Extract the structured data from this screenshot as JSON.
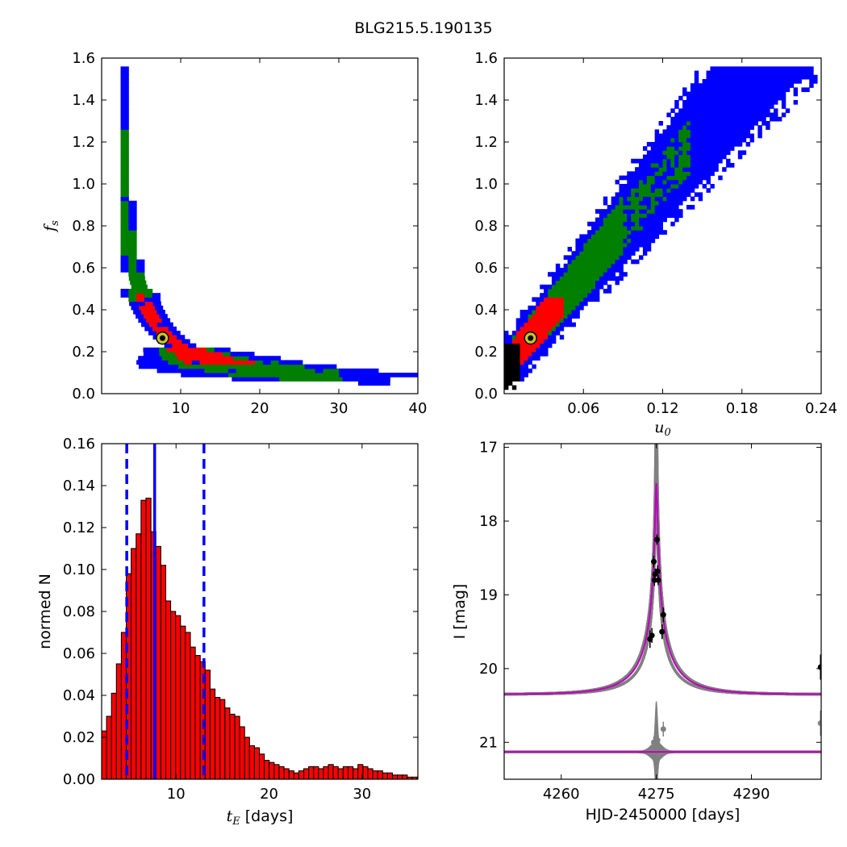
{
  "title": "BLG215.5.190135",
  "colors": {
    "blue": "#0000ff",
    "green": "#007f00",
    "red": "#ff0000",
    "black": "#000000",
    "magenta": "#bf00bf",
    "gray": "#808080",
    "marker_fill": "#c8c82a"
  },
  "chart_data": [
    {
      "type": "heatmap",
      "panel": "fs-vs-tE",
      "xlabel": "",
      "ylabel": "f_s",
      "xlim": [
        0,
        40
      ],
      "ylim": [
        0,
        1.6
      ],
      "xticks": [
        "10",
        "20",
        "30",
        "40"
      ],
      "yticks": [
        "0.0",
        "0.2",
        "0.4",
        "0.6",
        "0.8",
        "1.0",
        "1.2",
        "1.4",
        "1.6"
      ],
      "levels": [
        "blue",
        "green",
        "red",
        "black"
      ],
      "best_fit": {
        "tE": 7.7,
        "fs": 0.265
      },
      "ridge": {
        "fs_times_tE": 2.05
      }
    },
    {
      "type": "heatmap",
      "panel": "fs-vs-u0",
      "xlabel": "u_0",
      "ylabel": "",
      "xlim": [
        0,
        0.24
      ],
      "ylim": [
        0,
        1.6
      ],
      "xticks": [
        "0.06",
        "0.12",
        "0.18",
        "0.24"
      ],
      "yticks": [
        "0.0",
        "0.2",
        "0.4",
        "0.6",
        "0.8",
        "1.0",
        "1.2",
        "1.4",
        "1.6"
      ],
      "levels": [
        "blue",
        "green",
        "red",
        "black"
      ],
      "best_fit": {
        "u0": 0.02,
        "fs": 0.265
      },
      "ridge": {
        "slope": 7.5,
        "intercept": 0.13
      }
    },
    {
      "type": "bar",
      "panel": "tE-histogram",
      "xlabel": "t_E [days]",
      "ylabel": "normed N",
      "xlim": [
        2,
        36
      ],
      "ylim": [
        0,
        0.16
      ],
      "xticks": [
        "10",
        "20",
        "30"
      ],
      "yticks": [
        "0.00",
        "0.02",
        "0.04",
        "0.06",
        "0.08",
        "0.10",
        "0.12",
        "0.14",
        "0.16"
      ],
      "bin_start": 2.0,
      "bin_width": 0.53,
      "values": [
        0.023,
        0.03,
        0.041,
        0.055,
        0.07,
        0.098,
        0.11,
        0.117,
        0.133,
        0.134,
        0.118,
        0.111,
        0.102,
        0.085,
        0.08,
        0.078,
        0.073,
        0.07,
        0.063,
        0.059,
        0.056,
        0.052,
        0.043,
        0.039,
        0.038,
        0.034,
        0.031,
        0.03,
        0.025,
        0.02,
        0.016,
        0.015,
        0.012,
        0.009,
        0.008,
        0.007,
        0.006,
        0.005,
        0.004,
        0.003,
        0.004,
        0.005,
        0.006,
        0.006,
        0.005,
        0.006,
        0.007,
        0.006,
        0.005,
        0.006,
        0.006,
        0.005,
        0.007,
        0.006,
        0.005,
        0.004,
        0.004,
        0.003,
        0.003,
        0.002,
        0.002,
        0.002,
        0.001,
        0.001,
        0.001
      ],
      "median": 7.7,
      "lower": 4.7,
      "upper": 13.0
    },
    {
      "type": "line",
      "panel": "light-curve",
      "xlabel": "HJD-2450000 [days]",
      "ylabel": "I [mag]",
      "xlim": [
        4251,
        4301
      ],
      "ylim": [
        21.5,
        16.95
      ],
      "xticks": [
        "4260",
        "4275",
        "4290"
      ],
      "yticks": [
        "17",
        "18",
        "19",
        "20",
        "21"
      ],
      "model": {
        "t0": 4275.0,
        "u0": 0.02,
        "tE": 7.7,
        "baseline": 20.35,
        "fs": 0.265
      },
      "residual_baseline": 21.13,
      "points": [
        {
          "t": 4274.0,
          "mag": 19.6,
          "err": 0.12
        },
        {
          "t": 4274.3,
          "mag": 19.55,
          "err": 0.1
        },
        {
          "t": 4274.6,
          "mag": 18.55,
          "err": 0.08
        },
        {
          "t": 4274.7,
          "mag": 18.8,
          "err": 0.08
        },
        {
          "t": 4274.8,
          "mag": 18.72,
          "err": 0.08
        },
        {
          "t": 4275.1,
          "mag": 18.25,
          "err": 0.07
        },
        {
          "t": 4275.2,
          "mag": 18.68,
          "err": 0.08
        },
        {
          "t": 4275.3,
          "mag": 18.8,
          "err": 0.07
        },
        {
          "t": 4275.9,
          "mag": 19.5,
          "err": 0.1
        },
        {
          "t": 4276.1,
          "mag": 19.27,
          "err": 0.1
        },
        {
          "t": 4300.9,
          "mag": 19.98,
          "err": 0.17
        }
      ],
      "residual_points": [
        {
          "t": 4274.6,
          "mag": 21.0,
          "err": 0.08
        },
        {
          "t": 4275.2,
          "mag": 20.97,
          "err": 0.08
        },
        {
          "t": 4276.1,
          "mag": 20.82,
          "err": 0.1
        },
        {
          "t": 4300.9,
          "mag": 20.74,
          "err": 0.17
        }
      ]
    }
  ]
}
